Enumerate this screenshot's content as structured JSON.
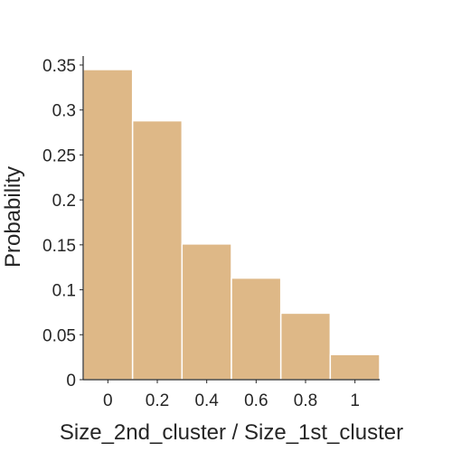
{
  "chart_data": {
    "type": "bar",
    "title": "",
    "xlabel": "Size_2nd_cluster / Size_1st_cluster",
    "ylabel": "Probability",
    "bin_edges": [
      -0.1,
      0.1,
      0.3,
      0.5,
      0.7,
      0.9,
      1.1
    ],
    "values": [
      0.345,
      0.288,
      0.151,
      0.113,
      0.074,
      0.028
    ],
    "xlim": [
      -0.1,
      1.1
    ],
    "ylim": [
      0,
      0.36
    ],
    "xticks": [
      0,
      0.2,
      0.4,
      0.6,
      0.8,
      1
    ],
    "xtick_labels": [
      "0",
      "0.2",
      "0.4",
      "0.6",
      "0.8",
      "1"
    ],
    "yticks": [
      0,
      0.05,
      0.1,
      0.15,
      0.2,
      0.25,
      0.3,
      0.35
    ],
    "ytick_labels": [
      "0",
      "0.05",
      "0.1",
      "0.15",
      "0.2",
      "0.25",
      "0.3",
      "0.35"
    ],
    "grid": false,
    "legend": "none",
    "bar_color": "#deb887"
  }
}
